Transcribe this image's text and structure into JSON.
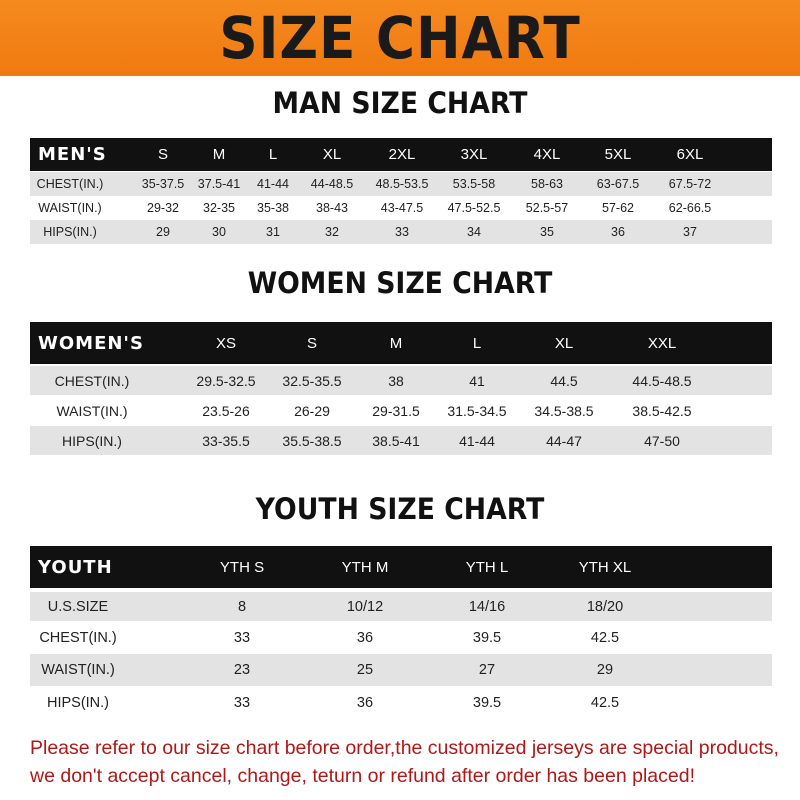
{
  "banner": {
    "title": "SIZE CHART",
    "color": "#f58a1f"
  },
  "tables": [
    {
      "title": "MAN SIZE CHART",
      "header": [
        "MEN'S",
        "S",
        "M",
        "L",
        "XL",
        "2XL",
        "3XL",
        "4XL",
        "5XL",
        "6XL"
      ],
      "rows": [
        [
          "CHEST(IN.)",
          "35-37.5",
          "37.5-41",
          "41-44",
          "44-48.5",
          "48.5-53.5",
          "53.5-58",
          "58-63",
          "63-67.5",
          "67.5-72"
        ],
        [
          "WAIST(IN.)",
          "29-32",
          "32-35",
          "35-38",
          "38-43",
          "43-47.5",
          "47.5-52.5",
          "52.5-57",
          "57-62",
          "62-66.5"
        ],
        [
          "HIPS(IN.)",
          "29",
          "30",
          "31",
          "32",
          "33",
          "34",
          "35",
          "36",
          "37"
        ]
      ]
    },
    {
      "title": "WOMEN SIZE CHART",
      "header": [
        "WOMEN'S",
        "XS",
        "S",
        "M",
        "L",
        "XL",
        "XXL"
      ],
      "rows": [
        [
          "CHEST(IN.)",
          "29.5-32.5",
          "32.5-35.5",
          "38",
          "41",
          "44.5",
          "44.5-48.5"
        ],
        [
          "WAIST(IN.)",
          "23.5-26",
          "26-29",
          "29-31.5",
          "31.5-34.5",
          "34.5-38.5",
          "38.5-42.5"
        ],
        [
          "HIPS(IN.)",
          "33-35.5",
          "35.5-38.5",
          "38.5-41",
          "41-44",
          "44-47",
          "47-50"
        ]
      ]
    },
    {
      "title": "YOUTH SIZE CHART",
      "header": [
        "YOUTH",
        "YTH S",
        "YTH M",
        "YTH L",
        "YTH XL"
      ],
      "rows": [
        [
          "U.S.SIZE",
          "8",
          "10/12",
          "14/16",
          "18/20"
        ],
        [
          "CHEST(IN.)",
          "33",
          "36",
          "39.5",
          "42.5"
        ],
        [
          "WAIST(IN.)",
          "23",
          "25",
          "27",
          "29"
        ],
        [
          "HIPS(IN.)",
          "33",
          "36",
          "39.5",
          "42.5"
        ]
      ]
    }
  ],
  "note": {
    "line1": "Please refer to our size chart before order,the customized jerseys are special products,",
    "line2": "we don't accept cancel, change, teturn or refund after order has been placed!",
    "color": "#b01818"
  }
}
